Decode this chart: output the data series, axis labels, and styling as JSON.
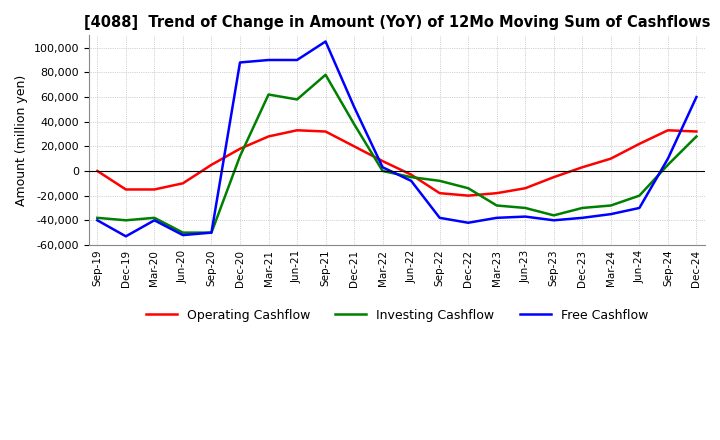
{
  "title": "[4088]  Trend of Change in Amount (YoY) of 12Mo Moving Sum of Cashflows",
  "ylabel": "Amount (million yen)",
  "ylim": [
    -60000,
    110000
  ],
  "yticks": [
    -60000,
    -40000,
    -20000,
    0,
    20000,
    40000,
    60000,
    80000,
    100000
  ],
  "x_labels": [
    "Sep-19",
    "Dec-19",
    "Mar-20",
    "Jun-20",
    "Sep-20",
    "Dec-20",
    "Mar-21",
    "Jun-21",
    "Sep-21",
    "Dec-21",
    "Mar-22",
    "Jun-22",
    "Sep-22",
    "Dec-22",
    "Mar-23",
    "Jun-23",
    "Sep-23",
    "Dec-23",
    "Mar-24",
    "Jun-24",
    "Sep-24",
    "Dec-24"
  ],
  "operating": [
    0,
    -15000,
    -15000,
    -10000,
    5000,
    18000,
    28000,
    33000,
    32000,
    20000,
    8000,
    -3000,
    -18000,
    -20000,
    -18000,
    -14000,
    -5000,
    3000,
    10000,
    22000,
    33000,
    32000
  ],
  "investing": [
    -38000,
    -40000,
    -38000,
    -50000,
    -50000,
    12000,
    62000,
    58000,
    78000,
    38000,
    0,
    -5000,
    -8000,
    -14000,
    -28000,
    -30000,
    -36000,
    -30000,
    -28000,
    -20000,
    5000,
    28000
  ],
  "free": [
    -40000,
    -53000,
    -40000,
    -52000,
    -50000,
    88000,
    90000,
    90000,
    105000,
    52000,
    3000,
    -8000,
    -38000,
    -42000,
    -38000,
    -37000,
    -40000,
    -38000,
    -35000,
    -30000,
    10000,
    60000
  ],
  "operating_color": "#ff0000",
  "investing_color": "#008000",
  "free_color": "#0000ff",
  "bg_color": "#ffffff",
  "grid_color": "#aaaaaa"
}
